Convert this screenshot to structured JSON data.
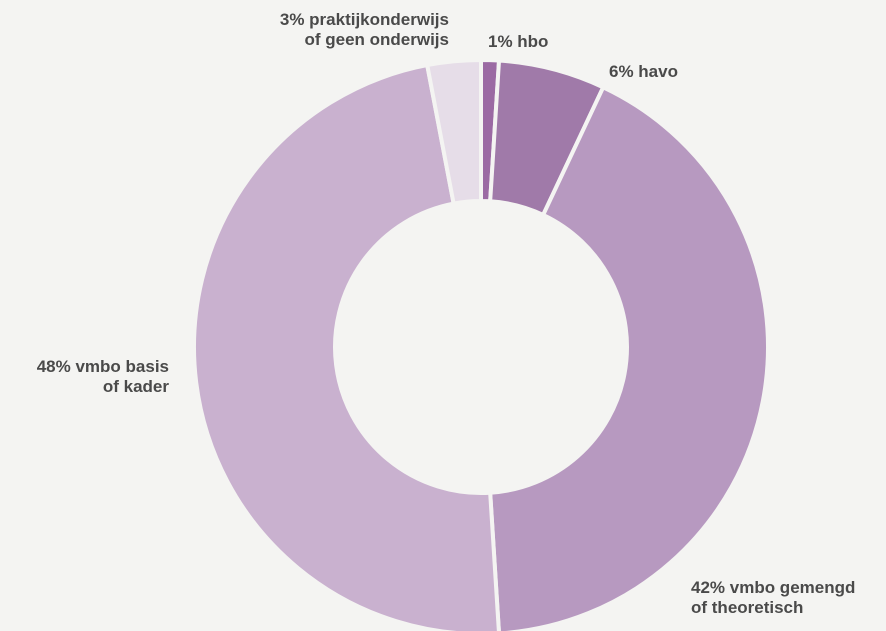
{
  "chart_data": {
    "type": "pie",
    "donut": true,
    "title": "",
    "start_angle_deg": 0,
    "direction": "clockwise",
    "slices": [
      {
        "label_lines": [
          "1% hbo"
        ],
        "value": 1,
        "color": "#9b6aa3"
      },
      {
        "label_lines": [
          "6% havo"
        ],
        "value": 6,
        "color": "#a07aa9"
      },
      {
        "label_lines": [
          "42% vmbo gemengd",
          "of theoretisch"
        ],
        "value": 42,
        "color": "#b799c0"
      },
      {
        "label_lines": [
          "48% vmbo basis",
          "of kader"
        ],
        "value": 48,
        "color": "#c9b1cf"
      },
      {
        "label_lines": [
          "3% praktijkonderwijs",
          "of geen onderwijs"
        ],
        "value": 3,
        "color": "#e6dde8"
      }
    ],
    "background": "#f4f4f2"
  }
}
